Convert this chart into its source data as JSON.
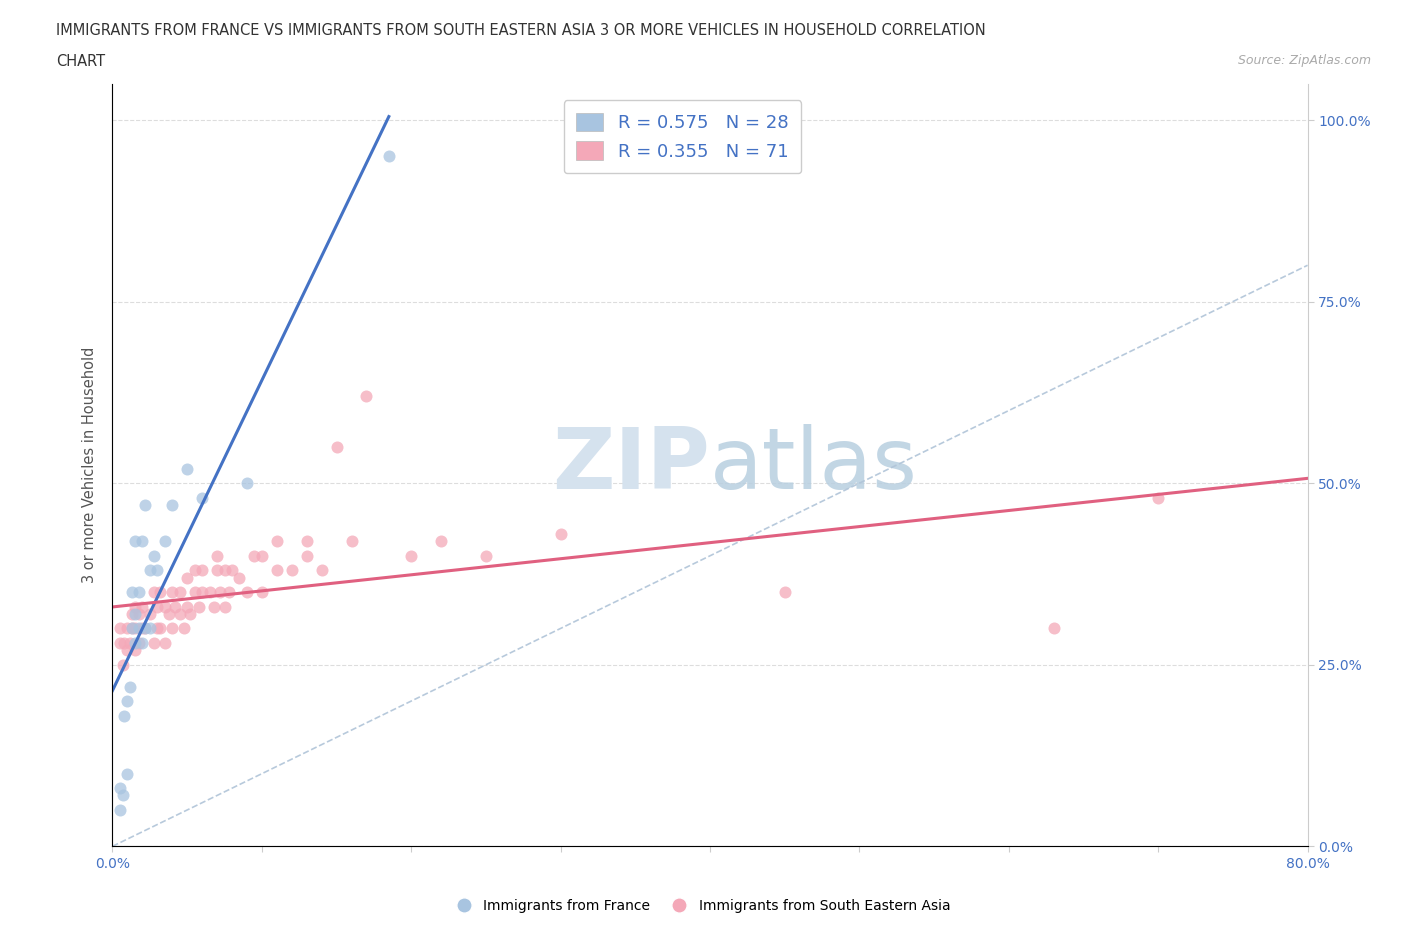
{
  "title_line1": "IMMIGRANTS FROM FRANCE VS IMMIGRANTS FROM SOUTH EASTERN ASIA 3 OR MORE VEHICLES IN HOUSEHOLD CORRELATION",
  "title_line2": "CHART",
  "source_text": "Source: ZipAtlas.com",
  "ylabel": "3 or more Vehicles in Household",
  "xlabel": "",
  "xmin": 0.0,
  "xmax": 0.8,
  "ymin": 0.0,
  "ymax": 1.05,
  "xticks": [
    0.0,
    0.1,
    0.2,
    0.3,
    0.4,
    0.5,
    0.6,
    0.7,
    0.8
  ],
  "xtick_labels": [
    "0.0%",
    "",
    "",
    "",
    "",
    "",
    "",
    "",
    "80.0%"
  ],
  "ytick_vals": [
    0.0,
    0.25,
    0.5,
    0.75,
    1.0
  ],
  "ytick_labels": [
    "0.0%",
    "25.0%",
    "50.0%",
    "75.0%",
    "100.0%"
  ],
  "france_R": 0.575,
  "france_N": 28,
  "sea_R": 0.355,
  "sea_N": 71,
  "france_color": "#a8c4e0",
  "sea_color": "#f4a8b8",
  "france_line_color": "#4472c4",
  "sea_line_color": "#e06080",
  "ref_line_color": "#b0c4d8",
  "watermark_color": "#d0dce8",
  "background_color": "#ffffff",
  "legend_R_color": "#4472c4",
  "france_x": [
    0.005,
    0.005,
    0.007,
    0.008,
    0.01,
    0.01,
    0.012,
    0.013,
    0.013,
    0.015,
    0.015,
    0.015,
    0.018,
    0.018,
    0.02,
    0.02,
    0.022,
    0.022,
    0.025,
    0.025,
    0.028,
    0.03,
    0.035,
    0.04,
    0.05,
    0.06,
    0.09,
    0.185
  ],
  "france_y": [
    0.05,
    0.08,
    0.07,
    0.18,
    0.1,
    0.2,
    0.22,
    0.3,
    0.35,
    0.28,
    0.32,
    0.42,
    0.3,
    0.35,
    0.28,
    0.42,
    0.3,
    0.47,
    0.3,
    0.38,
    0.4,
    0.38,
    0.42,
    0.47,
    0.52,
    0.48,
    0.5,
    0.95
  ],
  "sea_x": [
    0.005,
    0.005,
    0.007,
    0.008,
    0.01,
    0.01,
    0.012,
    0.013,
    0.013,
    0.015,
    0.015,
    0.015,
    0.018,
    0.018,
    0.02,
    0.02,
    0.022,
    0.025,
    0.028,
    0.028,
    0.03,
    0.03,
    0.032,
    0.032,
    0.035,
    0.035,
    0.038,
    0.04,
    0.04,
    0.042,
    0.045,
    0.045,
    0.048,
    0.05,
    0.05,
    0.052,
    0.055,
    0.055,
    0.058,
    0.06,
    0.06,
    0.065,
    0.068,
    0.07,
    0.07,
    0.072,
    0.075,
    0.075,
    0.078,
    0.08,
    0.085,
    0.09,
    0.095,
    0.1,
    0.1,
    0.11,
    0.11,
    0.12,
    0.13,
    0.13,
    0.14,
    0.15,
    0.16,
    0.17,
    0.2,
    0.22,
    0.25,
    0.3,
    0.45,
    0.63,
    0.7
  ],
  "sea_y": [
    0.28,
    0.3,
    0.25,
    0.28,
    0.27,
    0.3,
    0.28,
    0.3,
    0.32,
    0.27,
    0.3,
    0.33,
    0.28,
    0.32,
    0.3,
    0.33,
    0.3,
    0.32,
    0.28,
    0.35,
    0.3,
    0.33,
    0.3,
    0.35,
    0.28,
    0.33,
    0.32,
    0.3,
    0.35,
    0.33,
    0.32,
    0.35,
    0.3,
    0.33,
    0.37,
    0.32,
    0.35,
    0.38,
    0.33,
    0.35,
    0.38,
    0.35,
    0.33,
    0.38,
    0.4,
    0.35,
    0.33,
    0.38,
    0.35,
    0.38,
    0.37,
    0.35,
    0.4,
    0.35,
    0.4,
    0.38,
    0.42,
    0.38,
    0.4,
    0.42,
    0.38,
    0.55,
    0.42,
    0.62,
    0.4,
    0.42,
    0.4,
    0.43,
    0.35,
    0.3,
    0.48
  ],
  "marker_size": 75,
  "france_line_x0": 0.0,
  "france_line_x1": 0.185,
  "sea_line_x0": 0.0,
  "sea_line_x1": 0.8
}
